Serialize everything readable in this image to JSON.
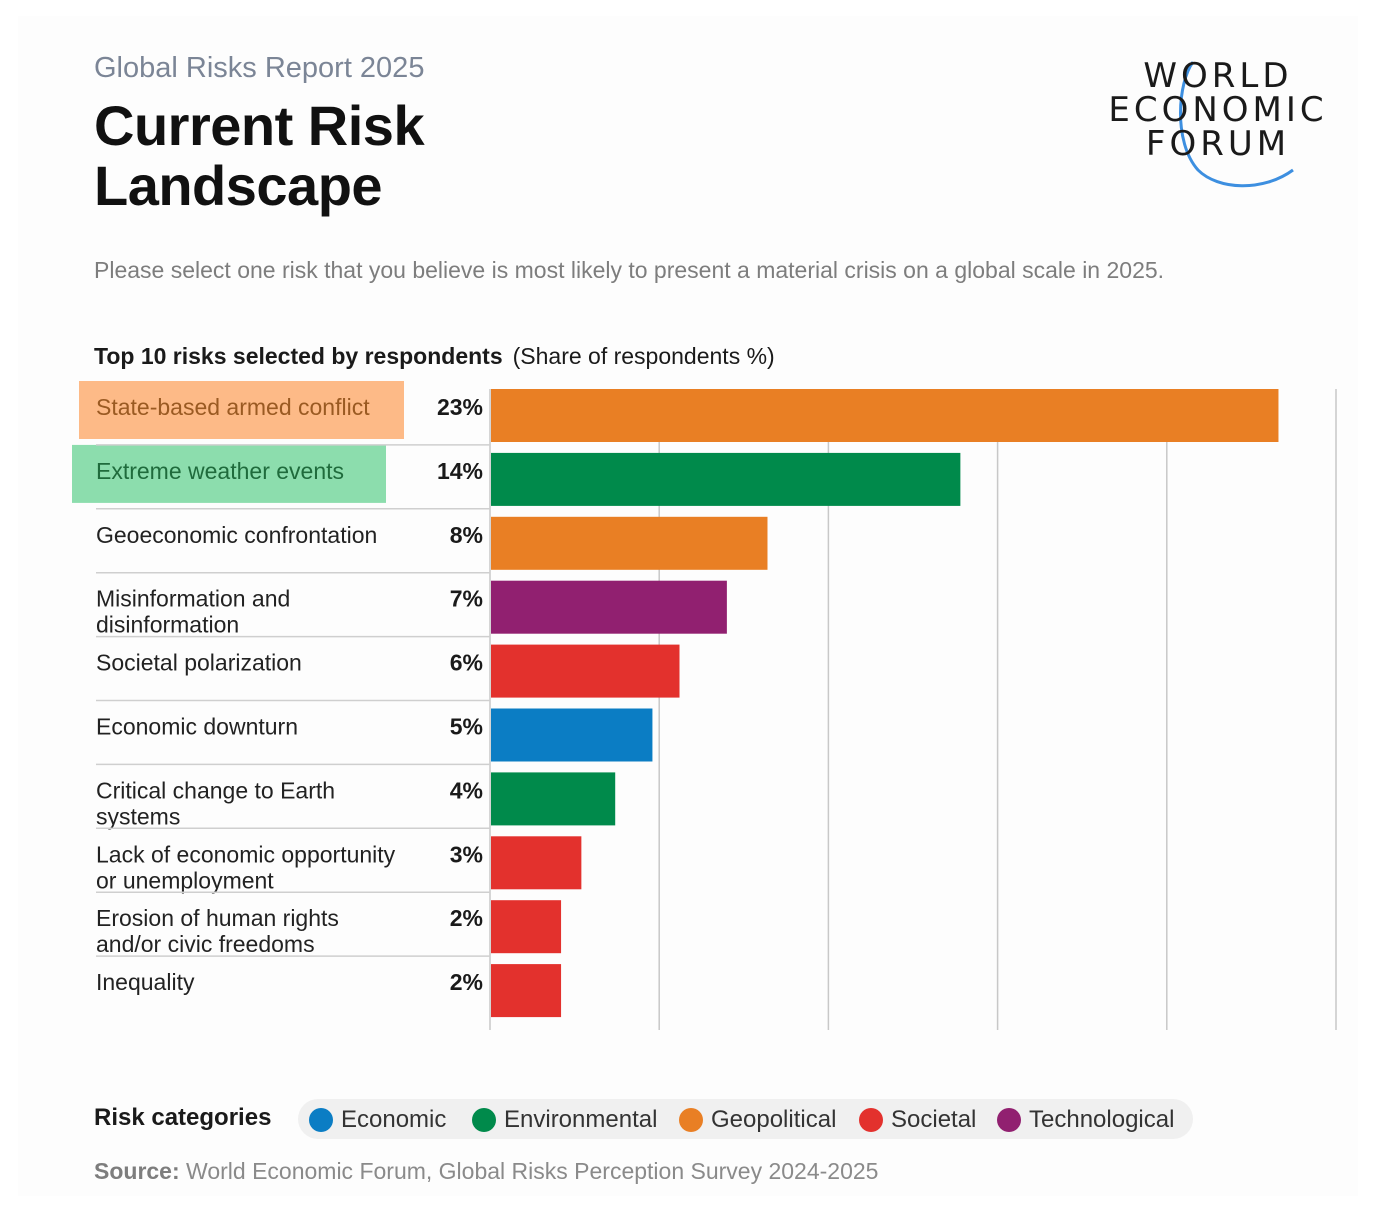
{
  "header": {
    "report": "Global Risks Report 2025",
    "title": "Current Risk Landscape",
    "logo_lines": [
      "WORLD",
      "ECONOMIC",
      "FORUM"
    ]
  },
  "question": "Please select one risk that you believe is most likely to present a material crisis on a global scale in 2025.",
  "chart_heading": {
    "bold": "Top 10 risks selected by respondents",
    "paren": "(Share of respondents %)"
  },
  "chart_data": {
    "type": "bar",
    "orientation": "horizontal",
    "title": "Top 10 risks selected by respondents",
    "subtitle": "(Share of respondents %)",
    "xlim": [
      0,
      25
    ],
    "grid": true,
    "categories": [
      [
        "State-based armed conflict"
      ],
      [
        "Extreme weather events"
      ],
      [
        "Geoeconomic confrontation"
      ],
      [
        "Misinformation and",
        "disinformation"
      ],
      [
        "Societal polarization"
      ],
      [
        "Economic downturn"
      ],
      [
        "Critical change to Earth",
        "systems"
      ],
      [
        "Lack of economic opportunity",
        "or unemployment"
      ],
      [
        "Erosion of human rights",
        "and/or civic freedoms"
      ],
      [
        "Inequality"
      ]
    ],
    "values": [
      23.3,
      13.9,
      8.2,
      7.0,
      5.6,
      4.8,
      3.7,
      2.7,
      2.1,
      2.1
    ],
    "value_labels": [
      "23%",
      "14%",
      "8%",
      "7%",
      "6%",
      "5%",
      "4%",
      "3%",
      "2%",
      "2%"
    ],
    "bar_categories": [
      "Geopolitical",
      "Environmental",
      "Geopolitical",
      "Technological",
      "Societal",
      "Economic",
      "Environmental",
      "Societal",
      "Societal",
      "Societal"
    ],
    "highlights": [
      {
        "row": 0,
        "color": "#fdb27a"
      },
      {
        "row": 1,
        "color": "#7fd9a4"
      }
    ]
  },
  "legend": {
    "label": "Risk categories",
    "items": [
      {
        "name": "Economic",
        "color": "#0b7dc4"
      },
      {
        "name": "Environmental",
        "color": "#008a4b"
      },
      {
        "name": "Geopolitical",
        "color": "#e97f24"
      },
      {
        "name": "Societal",
        "color": "#e3312d"
      },
      {
        "name": "Technological",
        "color": "#912070"
      }
    ]
  },
  "source": {
    "label": "Source:",
    "text": "World Economic Forum, Global Risks Perception Survey 2024-2025"
  }
}
